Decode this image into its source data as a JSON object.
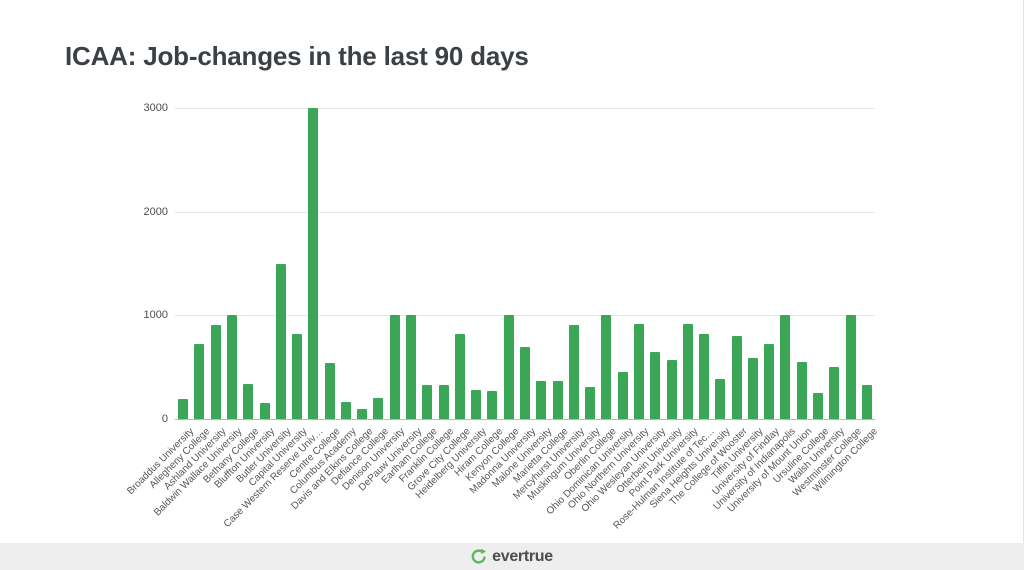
{
  "page": {
    "title": "ICAA: Job-changes in the last 90 days"
  },
  "footer": {
    "brand": "evertrue",
    "icon": "evertrue-circular-arrow-logo"
  },
  "colors": {
    "bar": "#3aa757",
    "logo_green": "#5cb85c",
    "title_text": "#3b4045",
    "grid": "#e8e8e8",
    "axis_text": "#4d4d4d",
    "footer_bg": "#eeeeee"
  },
  "chart_data": {
    "type": "bar",
    "title": "ICAA: Job-changes in the last 90 days",
    "xlabel": "",
    "ylabel": "",
    "ylim": [
      0,
      3000
    ],
    "yticks": [
      0,
      1000,
      2000,
      3000
    ],
    "grid": true,
    "legend": false,
    "categories": [
      "Broaddus University",
      "Allegheny College",
      "Ashland University",
      "Baldwin Wallace University",
      "Bethany College",
      "Bluffton University",
      "Butler University",
      "Capital University",
      "Case Western Reserve Univ…",
      "Centre College",
      "Columbus Academy",
      "Davis and Elkins College",
      "Defiance College",
      "Denison University",
      "DePauw University",
      "Earlham College",
      "Franklin College",
      "Grove City College",
      "Heidelberg University",
      "Hiram College",
      "Kenyon College",
      "Madonna University",
      "Malone University",
      "Marietta College",
      "Mercyhurst University",
      "Muskingum University",
      "Oberlin College",
      "Ohio Dominican University",
      "Ohio Northern University",
      "Ohio Wesleyan University",
      "Otterbein University",
      "Point Park University",
      "Rose-Hulman Institute of Tec…",
      "Siena Heights University",
      "The College of Wooster",
      "Tiffin University",
      "University of Findlay",
      "University of Indianapolis",
      "University of Mount Union",
      "Ursuline College",
      "Walsh University",
      "Westminster College",
      "Wilmington College"
    ],
    "values": [
      190,
      720,
      910,
      1000,
      340,
      150,
      1500,
      820,
      3000,
      540,
      160,
      100,
      200,
      1000,
      1000,
      330,
      330,
      820,
      280,
      270,
      1000,
      690,
      370,
      370,
      910,
      310,
      1000,
      450,
      920,
      650,
      570,
      920,
      820,
      390,
      800,
      590,
      720,
      1000,
      550,
      250,
      500,
      1000,
      330
    ]
  }
}
